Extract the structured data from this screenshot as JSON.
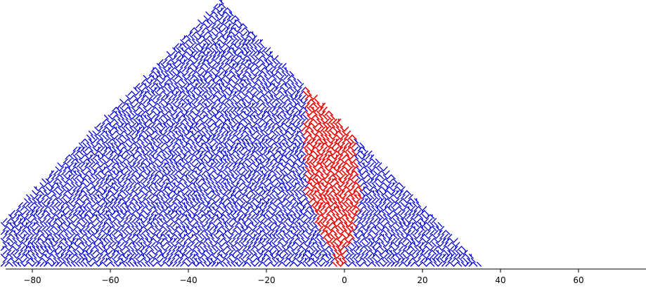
{
  "figure": {
    "description_colors": {
      "blue": "#0000dd",
      "red": "#ee0000",
      "axis": "#000000"
    },
    "axis": {
      "xlim": [
        -88,
        77
      ],
      "ticks": [
        {
          "value": -80,
          "label": "−80"
        },
        {
          "value": -60,
          "label": "−60"
        },
        {
          "value": -40,
          "label": "−40"
        },
        {
          "value": -20,
          "label": "−20"
        },
        {
          "value": 0,
          "label": "0"
        },
        {
          "value": 20,
          "label": "20"
        },
        {
          "value": 40,
          "label": "40"
        },
        {
          "value": 60,
          "label": "60"
        }
      ]
    },
    "tree": {
      "apex_x": -32,
      "generations": 67,
      "seed": 12345,
      "highlight_root_x": 0,
      "highlight_top_x": -6
    }
  }
}
